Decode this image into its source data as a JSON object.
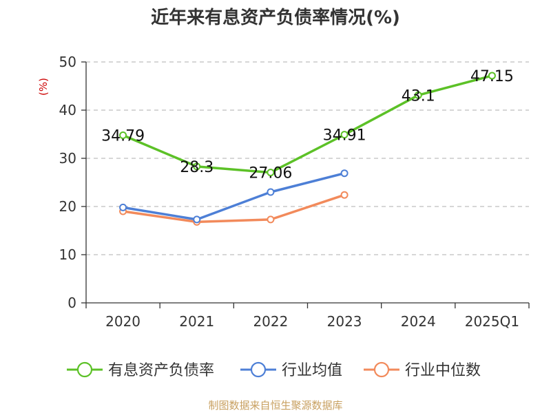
{
  "chart_data": {
    "type": "line",
    "title": "近年来有息资产负债率情况(%)",
    "ylabel": "(%)",
    "xlabel": "",
    "categories": [
      "2020",
      "2021",
      "2022",
      "2023",
      "2024",
      "2025Q1"
    ],
    "ylim": [
      0,
      50
    ],
    "yticks": [
      0,
      10,
      20,
      30,
      40,
      50
    ],
    "grid": true,
    "legend_position": "bottom",
    "series": [
      {
        "name": "有息资产负债率",
        "color": "#5cc127",
        "values": [
          34.79,
          28.3,
          27.06,
          34.91,
          43.1,
          47.15
        ],
        "labels": [
          "34.79",
          "28.3",
          "27.06",
          "34.91",
          "43.1",
          "47.15"
        ]
      },
      {
        "name": "行业均值",
        "color": "#4d7fd6",
        "values": [
          19.8,
          17.3,
          23.0,
          26.9,
          null,
          null
        ]
      },
      {
        "name": "行业中位数",
        "color": "#f28a5b",
        "values": [
          19.0,
          16.8,
          17.3,
          22.4,
          null,
          null
        ]
      }
    ]
  },
  "source": "制图数据来自恒生聚源数据库"
}
